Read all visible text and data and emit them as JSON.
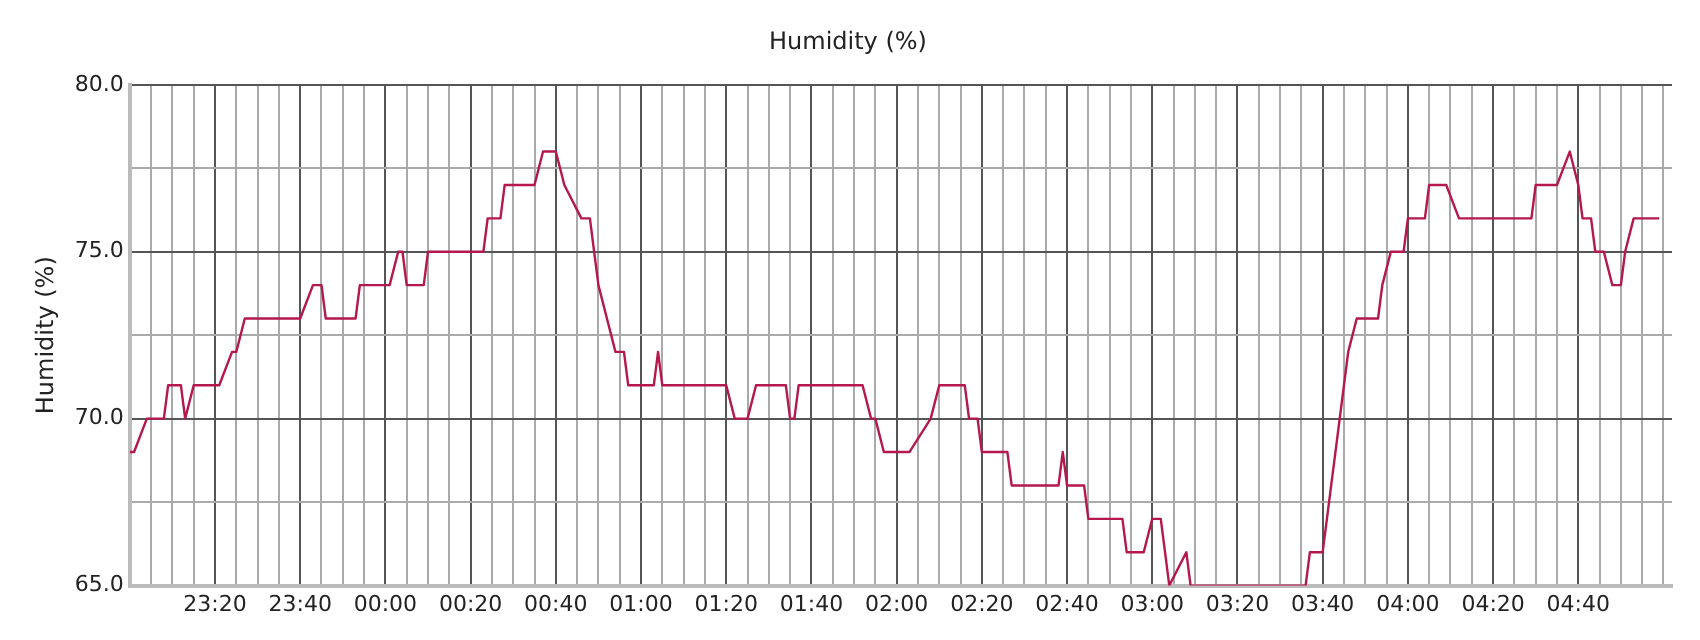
{
  "chart_data": {
    "type": "line",
    "title": "Humidity (%)",
    "ylabel": "Humidity (%)",
    "grid": true,
    "legend": false,
    "marker": "none",
    "line_style": "solid",
    "xlim": [
      "--01-01T23:00",
      "--01-02T05:02"
    ],
    "ylim": [
      65,
      80
    ],
    "yticks": [
      {
        "value": 65,
        "label": "65.0"
      },
      {
        "value": 67.5,
        "label": null
      },
      {
        "value": 70,
        "label": "70.0"
      },
      {
        "value": 72.5,
        "label": null
      },
      {
        "value": 75,
        "label": "75.0"
      },
      {
        "value": 77.5,
        "label": null
      },
      {
        "value": 80,
        "label": "80.0"
      }
    ],
    "xticks": [
      {
        "value": "--01-01T23:05",
        "label": null
      },
      {
        "value": "--01-01T23:10",
        "label": null
      },
      {
        "value": "--01-01T23:15",
        "label": null
      },
      {
        "value": "--01-01T23:20",
        "label": "23:20"
      },
      {
        "value": "--01-01T23:25",
        "label": null
      },
      {
        "value": "--01-01T23:30",
        "label": null
      },
      {
        "value": "--01-01T23:35",
        "label": null
      },
      {
        "value": "--01-01T23:40",
        "label": "23:40"
      },
      {
        "value": "--01-01T23:45",
        "label": null
      },
      {
        "value": "--01-01T23:50",
        "label": null
      },
      {
        "value": "--01-01T23:55",
        "label": null
      },
      {
        "value": "--01-02T00:00",
        "label": "00:00"
      },
      {
        "value": "--01-02T00:05",
        "label": null
      },
      {
        "value": "--01-02T00:10",
        "label": null
      },
      {
        "value": "--01-02T00:15",
        "label": null
      },
      {
        "value": "--01-02T00:20",
        "label": "00:20"
      },
      {
        "value": "--01-02T00:25",
        "label": null
      },
      {
        "value": "--01-02T00:30",
        "label": null
      },
      {
        "value": "--01-02T00:35",
        "label": null
      },
      {
        "value": "--01-02T00:40",
        "label": "00:40"
      },
      {
        "value": "--01-02T00:45",
        "label": null
      },
      {
        "value": "--01-02T00:50",
        "label": null
      },
      {
        "value": "--01-02T00:55",
        "label": null
      },
      {
        "value": "--01-02T01:00",
        "label": "01:00"
      },
      {
        "value": "--01-02T01:05",
        "label": null
      },
      {
        "value": "--01-02T01:10",
        "label": null
      },
      {
        "value": "--01-02T01:15",
        "label": null
      },
      {
        "value": "--01-02T01:20",
        "label": "01:20"
      },
      {
        "value": "--01-02T01:25",
        "label": null
      },
      {
        "value": "--01-02T01:30",
        "label": null
      },
      {
        "value": "--01-02T01:35",
        "label": null
      },
      {
        "value": "--01-02T01:40",
        "label": "01:40"
      },
      {
        "value": "--01-02T01:45",
        "label": null
      },
      {
        "value": "--01-02T01:50",
        "label": null
      },
      {
        "value": "--01-02T01:55",
        "label": null
      },
      {
        "value": "--01-02T02:00",
        "label": "02:00"
      },
      {
        "value": "--01-02T02:05",
        "label": null
      },
      {
        "value": "--01-02T02:10",
        "label": null
      },
      {
        "value": "--01-02T02:15",
        "label": null
      },
      {
        "value": "--01-02T02:20",
        "label": "02:20"
      },
      {
        "value": "--01-02T02:25",
        "label": null
      },
      {
        "value": "--01-02T02:30",
        "label": null
      },
      {
        "value": "--01-02T02:35",
        "label": null
      },
      {
        "value": "--01-02T02:40",
        "label": "02:40"
      },
      {
        "value": "--01-02T02:45",
        "label": null
      },
      {
        "value": "--01-02T02:50",
        "label": null
      },
      {
        "value": "--01-02T02:55",
        "label": null
      },
      {
        "value": "--01-02T03:00",
        "label": "03:00"
      },
      {
        "value": "--01-02T03:05",
        "label": null
      },
      {
        "value": "--01-02T03:10",
        "label": null
      },
      {
        "value": "--01-02T03:15",
        "label": null
      },
      {
        "value": "--01-02T03:20",
        "label": "03:20"
      },
      {
        "value": "--01-02T03:25",
        "label": null
      },
      {
        "value": "--01-02T03:30",
        "label": null
      },
      {
        "value": "--01-02T03:35",
        "label": null
      },
      {
        "value": "--01-02T03:40",
        "label": "03:40"
      },
      {
        "value": "--01-02T03:45",
        "label": null
      },
      {
        "value": "--01-02T03:50",
        "label": null
      },
      {
        "value": "--01-02T03:55",
        "label": null
      },
      {
        "value": "--01-02T04:00",
        "label": "04:00"
      },
      {
        "value": "--01-02T04:05",
        "label": null
      },
      {
        "value": "--01-02T04:10",
        "label": null
      },
      {
        "value": "--01-02T04:15",
        "label": null
      },
      {
        "value": "--01-02T04:20",
        "label": "04:20"
      },
      {
        "value": "--01-02T04:25",
        "label": null
      },
      {
        "value": "--01-02T04:30",
        "label": null
      },
      {
        "value": "--01-02T04:35",
        "label": null
      },
      {
        "value": "--01-02T04:40",
        "label": "04:40"
      },
      {
        "value": "--01-02T04:45",
        "label": null
      },
      {
        "value": "--01-02T04:50",
        "label": null
      },
      {
        "value": "--01-02T04:55",
        "label": null
      },
      {
        "value": "--01-02T05:00",
        "label": null
      }
    ],
    "series": [
      {
        "color": "#b5174f",
        "x": [
          "--01-01T23:00",
          "--01-01T23:01",
          "--01-01T23:04",
          "--01-01T23:08",
          "--01-01T23:09",
          "--01-01T23:12",
          "--01-01T23:13",
          "--01-01T23:15",
          "--01-01T23:21",
          "--01-01T23:24",
          "--01-01T23:25",
          "--01-01T23:27",
          "--01-01T23:40",
          "--01-01T23:43",
          "--01-01T23:45",
          "--01-01T23:46",
          "--01-01T23:53",
          "--01-01T23:54",
          "--01-02T00:01",
          "--01-02T00:03",
          "--01-02T00:04",
          "--01-02T00:05",
          "--01-02T00:09",
          "--01-02T00:10",
          "--01-02T00:23",
          "--01-02T00:24",
          "--01-02T00:27",
          "--01-02T00:28",
          "--01-02T00:35",
          "--01-02T00:37",
          "--01-02T00:40",
          "--01-02T00:42",
          "--01-02T00:46",
          "--01-02T00:48",
          "--01-02T00:49",
          "--01-02T00:50",
          "--01-02T00:52",
          "--01-02T00:54",
          "--01-02T00:56",
          "--01-02T00:57",
          "--01-02T01:03",
          "--01-02T01:04",
          "--01-02T01:05",
          "--01-02T01:20",
          "--01-02T01:22",
          "--01-02T01:25",
          "--01-02T01:27",
          "--01-02T01:34",
          "--01-02T01:35",
          "--01-02T01:36",
          "--01-02T01:37",
          "--01-02T01:52",
          "--01-02T01:54",
          "--01-02T01:55",
          "--01-02T01:57",
          "--01-02T02:03",
          "--01-02T02:08",
          "--01-02T02:10",
          "--01-02T02:16",
          "--01-02T02:17",
          "--01-02T02:19",
          "--01-02T02:20",
          "--01-02T02:26",
          "--01-02T02:27",
          "--01-02T02:38",
          "--01-02T02:39",
          "--01-02T02:40",
          "--01-02T02:44",
          "--01-02T02:45",
          "--01-02T02:53",
          "--01-02T02:54",
          "--01-02T02:58",
          "--01-02T03:00",
          "--01-02T03:02",
          "--01-02T03:03",
          "--01-02T03:04",
          "--01-02T03:08",
          "--01-02T03:09",
          "--01-02T03:36",
          "--01-02T03:37",
          "--01-02T03:40",
          "--01-02T03:41",
          "--01-02T03:42",
          "--01-02T03:43",
          "--01-02T03:44",
          "--01-02T03:45",
          "--01-02T03:46",
          "--01-02T03:48",
          "--01-02T03:53",
          "--01-02T03:54",
          "--01-02T03:56",
          "--01-02T03:59",
          "--01-02T04:00",
          "--01-02T04:04",
          "--01-02T04:05",
          "--01-02T04:09",
          "--01-02T04:12",
          "--01-02T04:29",
          "--01-02T04:30",
          "--01-02T04:35",
          "--01-02T04:38",
          "--01-02T04:40",
          "--01-02T04:41",
          "--01-02T04:43",
          "--01-02T04:44",
          "--01-02T04:46",
          "--01-02T04:48",
          "--01-02T04:50",
          "--01-02T04:51",
          "--01-02T04:53",
          "--01-02T04:59"
        ],
        "values": [
          69,
          69,
          70,
          70,
          71,
          71,
          70,
          71,
          71,
          72,
          72,
          73,
          73,
          74,
          74,
          73,
          73,
          74,
          74,
          75,
          75,
          74,
          74,
          75,
          75,
          76,
          76,
          77,
          77,
          78,
          78,
          77,
          76,
          76,
          75,
          74,
          73,
          72,
          72,
          71,
          71,
          72,
          71,
          71,
          70,
          70,
          71,
          71,
          70,
          70,
          71,
          71,
          70,
          70,
          69,
          69,
          70,
          71,
          71,
          70,
          70,
          69,
          69,
          68,
          68,
          69,
          68,
          68,
          67,
          67,
          66,
          66,
          67,
          67,
          66,
          65,
          66,
          65,
          65,
          66,
          66,
          67,
          68,
          69,
          70,
          71,
          72,
          73,
          73,
          74,
          75,
          75,
          76,
          76,
          77,
          77,
          76,
          76,
          77,
          77,
          78,
          77,
          76,
          76,
          75,
          75,
          74,
          74,
          75,
          76,
          76
        ]
      }
    ]
  }
}
